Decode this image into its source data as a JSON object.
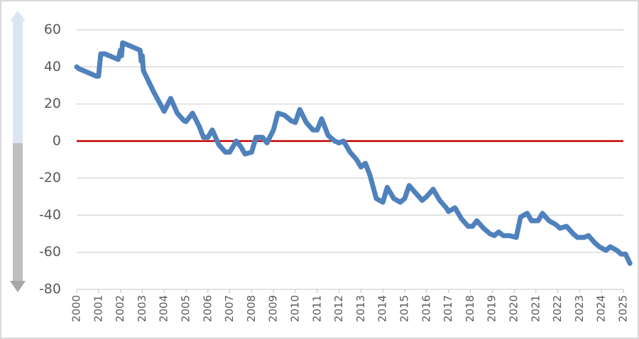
{
  "chart_data": {
    "type": "line",
    "x": [
      2000.0,
      2000.1,
      2000.9,
      2001.0,
      2001.1,
      2001.3,
      2001.9,
      2002.0,
      2002.05,
      2002.1,
      2002.5,
      2002.9,
      2002.95,
      2003.0,
      2003.05,
      2003.5,
      2004.0,
      2004.3,
      2004.6,
      2004.9,
      2005.0,
      2005.3,
      2005.6,
      2005.8,
      2006.0,
      2006.2,
      2006.5,
      2006.8,
      2007.0,
      2007.3,
      2007.5,
      2007.7,
      2008.0,
      2008.2,
      2008.5,
      2008.7,
      2009.0,
      2009.2,
      2009.5,
      2009.8,
      2010.0,
      2010.2,
      2010.5,
      2010.8,
      2011.0,
      2011.2,
      2011.5,
      2011.8,
      2012.0,
      2012.2,
      2012.5,
      2012.8,
      2013.0,
      2013.2,
      2013.4,
      2013.7,
      2014.0,
      2014.2,
      2014.5,
      2014.8,
      2015.0,
      2015.2,
      2015.5,
      2015.8,
      2016.0,
      2016.3,
      2016.6,
      2016.9,
      2017.0,
      2017.3,
      2017.6,
      2017.9,
      2018.1,
      2018.3,
      2018.6,
      2018.9,
      2019.1,
      2019.3,
      2019.5,
      2019.8,
      2020.1,
      2020.3,
      2020.6,
      2020.8,
      2021.1,
      2021.3,
      2021.6,
      2021.9,
      2022.1,
      2022.4,
      2022.7,
      2022.9,
      2023.2,
      2023.4,
      2023.7,
      2023.9,
      2024.2,
      2024.4,
      2024.7,
      2024.9,
      2025.1,
      2025.3
    ],
    "series": [
      {
        "color": "#4f81bd",
        "values": [
          40,
          39,
          35,
          35,
          47,
          47,
          44,
          49,
          46,
          53,
          51,
          49,
          43,
          46,
          38,
          27,
          16,
          23,
          15,
          11,
          10.5,
          15,
          8,
          2,
          2,
          6,
          -2,
          -6,
          -6,
          0,
          -3,
          -7,
          -6,
          2,
          2,
          -1,
          6,
          15,
          14,
          11,
          10,
          17,
          10,
          6,
          6,
          12,
          3,
          0,
          -1,
          0,
          -6,
          -10,
          -14,
          -12,
          -18,
          -31,
          -33,
          -25,
          -31,
          -33,
          -31,
          -24,
          -28,
          -32,
          -30,
          -26,
          -32,
          -36,
          -38,
          -36,
          -42,
          -46,
          -46,
          -43,
          -47,
          -50,
          -51,
          -49,
          -51,
          -51,
          -52,
          -41,
          -39,
          -43,
          -43,
          -39,
          -43,
          -45,
          -47,
          -46,
          -50,
          -52,
          -52,
          -51,
          -55,
          -57,
          -59,
          -57,
          -59,
          -61,
          -61,
          -66
        ]
      }
    ],
    "xlim": [
      2000,
      2025
    ],
    "xticks": [
      2000,
      2001,
      2002,
      2003,
      2004,
      2005,
      2006,
      2007,
      2008,
      2009,
      2010,
      2011,
      2012,
      2013,
      2014,
      2015,
      2016,
      2017,
      2018,
      2019,
      2020,
      2021,
      2022,
      2023,
      2024,
      2025
    ],
    "ylim": [
      -80,
      60
    ],
    "yticks": [
      -80,
      -60,
      -40,
      -20,
      0,
      20,
      40,
      60
    ],
    "grid": true,
    "reference_line": {
      "value": 0,
      "color": "#c00000"
    }
  }
}
